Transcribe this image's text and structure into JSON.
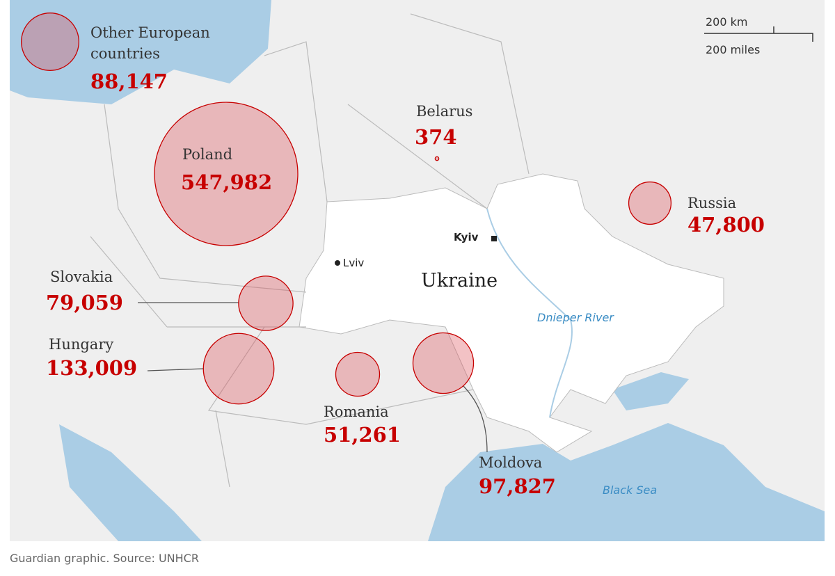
{
  "map": {
    "countries": [
      {
        "name": "Other European countries",
        "value": 88147,
        "value_label": "88,147"
      },
      {
        "name": "Poland",
        "value": 547982,
        "value_label": "547,982"
      },
      {
        "name": "Belarus",
        "value": 374,
        "value_label": "374"
      },
      {
        "name": "Russia",
        "value": 47800,
        "value_label": "47,800"
      },
      {
        "name": "Slovakia",
        "value": 79059,
        "value_label": "79,059"
      },
      {
        "name": "Hungary",
        "value": 133009,
        "value_label": "133,009"
      },
      {
        "name": "Romania",
        "value": 51261,
        "value_label": "51,261"
      },
      {
        "name": "Moldova",
        "value": 97827,
        "value_label": "97,827"
      }
    ],
    "places": {
      "country": "Ukraine",
      "capital": "Kyiv",
      "city": "Lviv",
      "river": "Dnieper River",
      "sea": "Black Sea"
    },
    "scale_bar": {
      "km": "200 km",
      "miles": "200 miles"
    }
  },
  "footer": "Guardian graphic. Source: UNHCR"
}
